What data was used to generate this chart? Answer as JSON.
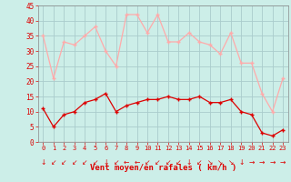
{
  "hours": [
    0,
    1,
    2,
    3,
    4,
    5,
    6,
    7,
    8,
    9,
    10,
    11,
    12,
    13,
    14,
    15,
    16,
    17,
    18,
    19,
    20,
    21,
    22,
    23
  ],
  "avg_wind": [
    11,
    5,
    9,
    10,
    13,
    14,
    16,
    10,
    12,
    13,
    14,
    14,
    15,
    14,
    14,
    15,
    13,
    13,
    14,
    10,
    9,
    3,
    2,
    4
  ],
  "gust_wind": [
    35,
    21,
    33,
    32,
    35,
    38,
    30,
    25,
    42,
    42,
    36,
    42,
    33,
    33,
    36,
    33,
    32,
    29,
    36,
    26,
    26,
    16,
    10,
    21
  ],
  "avg_color": "#dd0000",
  "gust_color": "#ffaaaa",
  "bg_color": "#cceee8",
  "grid_color": "#aacccc",
  "xlabel": "Vent moyen/en rafales ( km/h )",
  "xlabel_color": "#dd0000",
  "tick_color": "#dd0000",
  "spine_color": "#888888",
  "ylim": [
    0,
    45
  ],
  "yticks": [
    0,
    5,
    10,
    15,
    20,
    25,
    30,
    35,
    40,
    45
  ],
  "arrows": [
    "↓",
    "↙",
    "↙",
    "↙",
    "↙",
    "↙",
    "↓",
    "↙",
    "←",
    "←",
    "↙",
    "↙",
    "↙",
    "↙",
    "↓",
    "↙",
    "↘",
    "↘",
    "↘",
    "↓",
    "→",
    "→",
    "→",
    "→"
  ]
}
